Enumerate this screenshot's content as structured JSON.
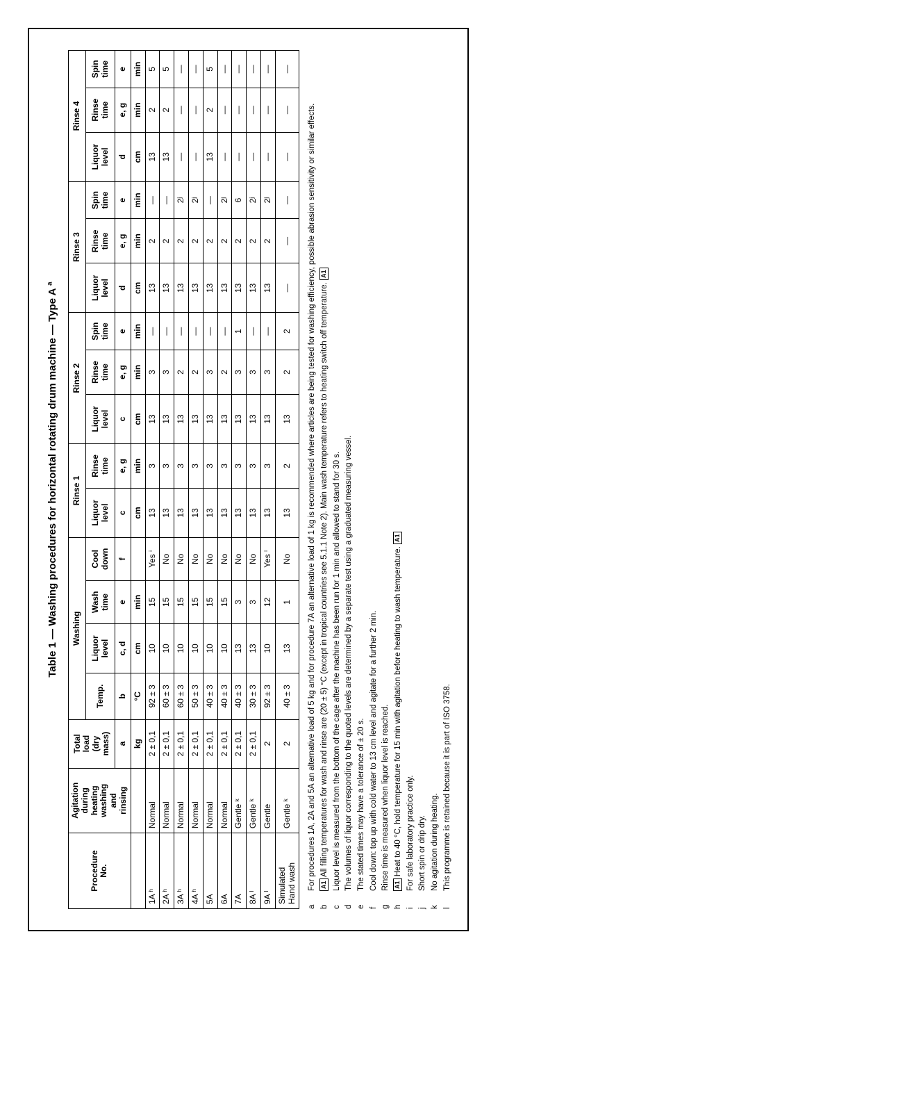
{
  "caption": "Table 1 — Washing procedures for horizontal rotating drum machine — Type A ª",
  "groupHeaders": [
    "Washing",
    "Rinse 1",
    "Rinse 2",
    "Rinse 3",
    "Rinse 4"
  ],
  "head": {
    "procNo": "Procedure\nNo.",
    "agitation": "Agitation\nduring\nheating\nwashing\nand\nrinsing",
    "totalLoad": "Total\nload\n(dry\nmass)",
    "temp": "Temp.",
    "liquor": "Liquor\nlevel",
    "wash": "Wash\ntime",
    "cool": "Cool\ndown",
    "rinse": "Rinse\ntime",
    "spin": "Spin\ntime"
  },
  "sub": {
    "a": "a",
    "b": "b",
    "cd": "c, d",
    "e": "e",
    "f": "f",
    "c": "c",
    "eg": "e, g",
    "d": "d"
  },
  "units": {
    "kg": "kg",
    "degC": "°C",
    "cm": "cm",
    "min": "min"
  },
  "rows": [
    {
      "proc": "1A ʰ",
      "agit": "Normal",
      "load": "2 ± 0,1",
      "temp": "92 ± 3",
      "ll": "10",
      "wt": "15",
      "cd": "Yes ⁱ",
      "r1l": "13",
      "r1t": "3",
      "r2l": "13",
      "r2t": "3",
      "r2s": "—",
      "r3l": "13",
      "r3t": "2",
      "r3s": "—",
      "r4l": "13",
      "r4t": "2",
      "r4s": "5"
    },
    {
      "proc": "2A ʰ",
      "agit": "Normal",
      "load": "2 ± 0,1",
      "temp": "60 ± 3",
      "ll": "10",
      "wt": "15",
      "cd": "No",
      "r1l": "13",
      "r1t": "3",
      "r2l": "13",
      "r2t": "3",
      "r2s": "—",
      "r3l": "13",
      "r3t": "2",
      "r3s": "—",
      "r4l": "13",
      "r4t": "2",
      "r4s": "5"
    },
    {
      "proc": "3A ʰ",
      "agit": "Normal",
      "load": "2 ± 0,1",
      "temp": "60 ± 3",
      "ll": "10",
      "wt": "15",
      "cd": "No",
      "r1l": "13",
      "r1t": "3",
      "r2l": "13",
      "r2t": "2",
      "r2s": "—",
      "r3l": "13",
      "r3t": "2",
      "r3s": "2ʲ",
      "r4l": "—",
      "r4t": "—",
      "r4s": "—"
    },
    {
      "proc": "4A ʰ",
      "agit": "Normal",
      "load": "2 ± 0,1",
      "temp": "50 ± 3",
      "ll": "10",
      "wt": "15",
      "cd": "No",
      "r1l": "13",
      "r1t": "3",
      "r2l": "13",
      "r2t": "2",
      "r2s": "—",
      "r3l": "13",
      "r3t": "2",
      "r3s": "2ʲ",
      "r4l": "—",
      "r4t": "—",
      "r4s": "—"
    },
    {
      "proc": "5A",
      "agit": "Normal",
      "load": "2 ± 0,1",
      "temp": "40 ± 3",
      "ll": "10",
      "wt": "15",
      "cd": "No",
      "r1l": "13",
      "r1t": "3",
      "r2l": "13",
      "r2t": "3",
      "r2s": "—",
      "r3l": "13",
      "r3t": "2",
      "r3s": "—",
      "r4l": "13",
      "r4t": "2",
      "r4s": "5"
    },
    {
      "proc": "6A",
      "agit": "Normal",
      "load": "2 ± 0,1",
      "temp": "40 ± 3",
      "ll": "10",
      "wt": "15",
      "cd": "No",
      "r1l": "13",
      "r1t": "3",
      "r2l": "13",
      "r2t": "2",
      "r2s": "—",
      "r3l": "13",
      "r3t": "2",
      "r3s": "2ʲ",
      "r4l": "—",
      "r4t": "—",
      "r4s": "—"
    },
    {
      "proc": "7A",
      "agit": "Gentle ᵏ",
      "load": "2 ± 0,1",
      "temp": "40 ± 3",
      "ll": "13",
      "wt": "3",
      "cd": "No",
      "r1l": "13",
      "r1t": "3",
      "r2l": "13",
      "r2t": "3",
      "r2s": "1",
      "r3l": "13",
      "r3t": "2",
      "r3s": "6",
      "r4l": "—",
      "r4t": "—",
      "r4s": "—"
    },
    {
      "proc": "8A ˡ",
      "agit": "Gentle ᵏ",
      "load": "2 ± 0,1",
      "temp": "30 ± 3",
      "ll": "13",
      "wt": "3",
      "cd": "No",
      "r1l": "13",
      "r1t": "3",
      "r2l": "13",
      "r2t": "3",
      "r2s": "—",
      "r3l": "13",
      "r3t": "2",
      "r3s": "2ʲ",
      "r4l": "—",
      "r4t": "—",
      "r4s": "—"
    },
    {
      "proc": "9A ˡ",
      "agit": "Gentle",
      "load": "2",
      "temp": "92 ± 3",
      "ll": "10",
      "wt": "12",
      "cd": "Yes ⁱ",
      "r1l": "13",
      "r1t": "3",
      "r2l": "13",
      "r2t": "3",
      "r2s": "—",
      "r3l": "13",
      "r3t": "2",
      "r3s": "2ʲ",
      "r4l": "—",
      "r4t": "—",
      "r4s": "—"
    },
    {
      "proc": "Simulated\nHand wash",
      "agit": "Gentle ᵏ",
      "load": "2",
      "temp": "40 ± 3",
      "ll": "13",
      "wt": "1",
      "cd": "No",
      "r1l": "13",
      "r1t": "2",
      "r2l": "13",
      "r2t": "2",
      "r2s": "2",
      "r3l": "—",
      "r3t": "—",
      "r3s": "—",
      "r4l": "—",
      "r4t": "—",
      "r4s": "—"
    }
  ],
  "footnotes": [
    {
      "k": "a",
      "t": "For procedures 1A, 2A and 5A an alternative load of 5 kg and for procedure 7A an alternative load of 1 kg is recommended where articles are being tested for washing efficiency, possible abrasion sensitivity or similar effects."
    },
    {
      "k": "b",
      "t": "[A1] All filling temperatures for wash and rinse are (20 ± 5) °C (except in tropical countries see 5.1.1 Note 2). Main wash temperature refers to heating switch off temperature. [A1]"
    },
    {
      "k": "c",
      "t": "Liquor level is measured from the bottom of the cage after the machine has been run for 1 min and allowed to stand for 30 s."
    },
    {
      "k": "d",
      "t": "The volumes of liquor corresponding to the quoted levels are determined by a separate test using a graduated measuring vessel."
    },
    {
      "k": "e",
      "t": "The stated times may have a tolerance of ± 20 s."
    },
    {
      "k": "f",
      "t": "Cool down: top up with cold water to 13 cm level and agitate for a further 2 min."
    },
    {
      "k": "g",
      "t": "Rinse time is measured when liquor level is reached."
    },
    {
      "k": "h",
      "t": "[A1] Heat to 40 °C, hold temperature for 15 min with agitation before heating to wash temperature. [A1]"
    },
    {
      "k": "i",
      "t": "For safe laboratory practice only."
    },
    {
      "k": "j",
      "t": "Short spin or drip dry."
    },
    {
      "k": "k",
      "t": "No agitation during heating."
    },
    {
      "k": "l",
      "t": "This programme is retained because it is part of ISO 3758."
    }
  ],
  "style": {
    "fontFamily": "Arial, Helvetica, sans-serif",
    "captionFontSize": 15,
    "tableFontSize": 12,
    "footnoteFontSize": 11.5,
    "borderColor": "#000000",
    "backgroundColor": "#ffffff",
    "textColor": "#000000",
    "pageWidth": 1316,
    "pageHeight": 1600,
    "orientation": "rotated-ccw-90"
  }
}
